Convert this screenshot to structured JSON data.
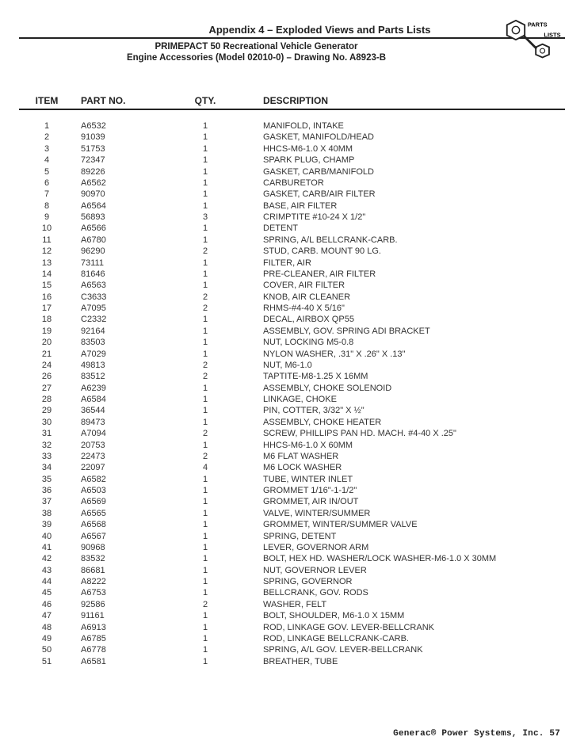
{
  "header": {
    "title": "Appendix 4 – Exploded Views and Parts Lists",
    "sub1": "PRIMEPACT 50 Recreational Vehicle Generator",
    "sub2": "Engine Accessories (Model 02010-0) – Drawing No. A8923-B",
    "badge": {
      "line1": "PARTS",
      "line2": "LISTS"
    }
  },
  "table": {
    "columns": [
      "ITEM",
      "PART NO.",
      "QTY.",
      "DESCRIPTION"
    ],
    "rows": [
      [
        "1",
        "A6532",
        "1",
        "MANIFOLD, INTAKE"
      ],
      [
        "2",
        "91039",
        "1",
        "GASKET, MANIFOLD/HEAD"
      ],
      [
        "3",
        "51753",
        "1",
        "HHCS-M6-1.0 X 40MM"
      ],
      [
        "4",
        "72347",
        "1",
        "SPARK PLUG, CHAMP"
      ],
      [
        "5",
        "89226",
        "1",
        "GASKET, CARB/MANIFOLD"
      ],
      [
        "6",
        "A6562",
        "1",
        "CARBURETOR"
      ],
      [
        "7",
        "90970",
        "1",
        "GASKET, CARB/AIR FILTER"
      ],
      [
        "8",
        "A6564",
        "1",
        "BASE, AIR FILTER"
      ],
      [
        "9",
        "56893",
        "3",
        "CRIMPTITE #10-24 X 1/2\""
      ],
      [
        "10",
        "A6566",
        "1",
        "DETENT"
      ],
      [
        "11",
        "A6780",
        "1",
        "SPRING, A/L BELLCRANK-CARB."
      ],
      [
        "12",
        "96290",
        "2",
        "STUD, CARB. MOUNT 90 LG."
      ],
      [
        "13",
        "73111",
        "1",
        "FILTER, AIR"
      ],
      [
        "14",
        "81646",
        "1",
        "PRE-CLEANER, AIR FILTER"
      ],
      [
        "15",
        "A6563",
        "1",
        "COVER, AIR FILTER"
      ],
      [
        "16",
        "C3633",
        "2",
        "KNOB, AIR CLEANER"
      ],
      [
        "17",
        "A7095",
        "2",
        "RHMS-#4-40 X 5/16\""
      ],
      [
        "18",
        "C2332",
        "1",
        "DECAL, AIRBOX QP55"
      ],
      [
        "19",
        "92164",
        "1",
        "ASSEMBLY, GOV. SPRING ADI BRACKET"
      ],
      [
        "20",
        "83503",
        "1",
        "NUT, LOCKING M5-0.8"
      ],
      [
        "21",
        "A7029",
        "1",
        "NYLON WASHER, .31\" X .26\" X .13\""
      ],
      [
        "24",
        "49813",
        "2",
        "NUT, M6-1.0"
      ],
      [
        "26",
        "83512",
        "2",
        "TAPTITE-M8-1.25 X 16MM"
      ],
      [
        "27",
        "A6239",
        "1",
        "ASSEMBLY, CHOKE SOLENOID"
      ],
      [
        "28",
        "A6584",
        "1",
        "LINKAGE, CHOKE"
      ],
      [
        "29",
        "36544",
        "1",
        "PIN, COTTER, 3/32\" X ½\""
      ],
      [
        "30",
        "89473",
        "1",
        "ASSEMBLY, CHOKE HEATER"
      ],
      [
        "31",
        "A7094",
        "2",
        "SCREW, PHILLIPS PAN HD. MACH. #4-40 X .25\""
      ],
      [
        "32",
        "20753",
        "1",
        "HHCS-M6-1.0 X 60MM"
      ],
      [
        "33",
        "22473",
        "2",
        "M6 FLAT WASHER"
      ],
      [
        "34",
        "22097",
        "4",
        "M6 LOCK WASHER"
      ],
      [
        "35",
        "A6582",
        "1",
        "TUBE, WINTER INLET"
      ],
      [
        "36",
        "A6503",
        "1",
        "GROMMET 1/16\"-1-1/2\""
      ],
      [
        "37",
        "A6569",
        "1",
        "GROMMET, AIR IN/OUT"
      ],
      [
        "38",
        "A6565",
        "1",
        "VALVE, WINTER/SUMMER"
      ],
      [
        "39",
        "A6568",
        "1",
        "GROMMET, WINTER/SUMMER VALVE"
      ],
      [
        "40",
        "A6567",
        "1",
        "SPRING, DETENT"
      ],
      [
        "41",
        "90968",
        "1",
        "LEVER, GOVERNOR ARM"
      ],
      [
        "42",
        "83532",
        "1",
        "BOLT, HEX HD. WASHER/LOCK WASHER-M6-1.0 X 30MM"
      ],
      [
        "43",
        "86681",
        "1",
        "NUT, GOVERNOR LEVER"
      ],
      [
        "44",
        "A8222",
        "1",
        "SPRING, GOVERNOR"
      ],
      [
        "45",
        "A6753",
        "1",
        "BELLCRANK, GOV. RODS"
      ],
      [
        "46",
        "92586",
        "2",
        "WASHER, FELT"
      ],
      [
        "47",
        "91161",
        "1",
        "BOLT, SHOULDER, M6-1.0 X 15MM"
      ],
      [
        "48",
        "A6913",
        "1",
        "ROD, LINKAGE GOV. LEVER-BELLCRANK"
      ],
      [
        "49",
        "A6785",
        "1",
        "ROD, LINKAGE BELLCRANK-CARB."
      ],
      [
        "50",
        "A6778",
        "1",
        "SPRING, A/L GOV. LEVER-BELLCRANK"
      ],
      [
        "51",
        "A6581",
        "1",
        "BREATHER, TUBE"
      ]
    ],
    "col_classes": [
      "col-item",
      "col-part",
      "col-qty",
      "col-desc"
    ]
  },
  "footer": {
    "text": "Generac® Power Systems, Inc.  57"
  }
}
